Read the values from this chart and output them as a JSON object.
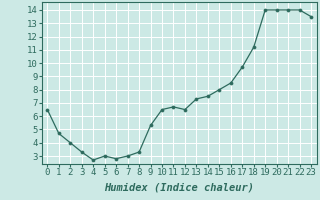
{
  "x": [
    0,
    1,
    2,
    3,
    4,
    5,
    6,
    7,
    8,
    9,
    10,
    11,
    12,
    13,
    14,
    15,
    16,
    17,
    18,
    19,
    20,
    21,
    22,
    23
  ],
  "y": [
    6.5,
    4.7,
    4.0,
    3.3,
    2.7,
    3.0,
    2.8,
    3.0,
    3.3,
    5.3,
    6.5,
    6.7,
    6.5,
    7.3,
    7.5,
    8.0,
    8.5,
    9.7,
    11.2,
    14.0,
    14.0,
    14.0,
    14.0,
    13.5
  ],
  "line_color": "#2e6b5e",
  "marker_color": "#2e6b5e",
  "bg_color": "#cce9e5",
  "grid_color": "#ffffff",
  "xlabel": "Humidex (Indice chaleur)",
  "xlim": [
    -0.5,
    23.5
  ],
  "ylim": [
    2.4,
    14.6
  ],
  "yticks": [
    3,
    4,
    5,
    6,
    7,
    8,
    9,
    10,
    11,
    12,
    13,
    14
  ],
  "xticks": [
    0,
    1,
    2,
    3,
    4,
    5,
    6,
    7,
    8,
    9,
    10,
    11,
    12,
    13,
    14,
    15,
    16,
    17,
    18,
    19,
    20,
    21,
    22,
    23
  ],
  "xlabel_fontsize": 7.5,
  "tick_fontsize": 6.5,
  "axis_color": "#2e6b5e",
  "spine_color": "#2e6b5e",
  "linewidth": 0.9,
  "markersize": 2.2
}
